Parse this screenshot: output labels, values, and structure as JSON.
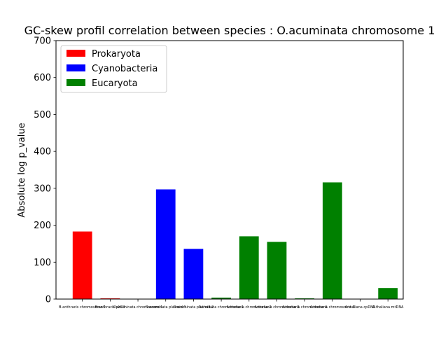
{
  "chart_data": {
    "type": "bar",
    "title": "GC-skew profil correlation between species : O.acuminata chromosome 1",
    "xlabel": "",
    "ylabel": "Absolute log p_value",
    "ylim": [
      0,
      700
    ],
    "yticks": [
      0,
      100,
      200,
      300,
      400,
      500,
      600,
      700
    ],
    "grid": false,
    "legend_position": "top-left",
    "categories": [
      "B.anthracis chromosome 1",
      "B.anthracis pXO1",
      "O.acuminata chromosome 1",
      "O.acuminata plasmid 1",
      "O.acuminata plasmid 2",
      "A.thaliana chromosome 1",
      "A.thaliana chromosome 2",
      "A.thaliana chromosome 3",
      "A.thaliana chromosome 4",
      "A.thaliana chromosome 5",
      "A.thaliana cpDNA",
      "A.thaliana mtDNA"
    ],
    "values": [
      183,
      2,
      0,
      297,
      136,
      4,
      170,
      155,
      2,
      316,
      0,
      30
    ],
    "groups": [
      "Prokaryota",
      "Prokaryota",
      "Cyanobacteria",
      "Cyanobacteria",
      "Cyanobacteria",
      "Eucaryota",
      "Eucaryota",
      "Eucaryota",
      "Eucaryota",
      "Eucaryota",
      "Eucaryota",
      "Eucaryota"
    ],
    "legend": [
      {
        "name": "Prokaryota",
        "color": "#ff0000"
      },
      {
        "name": "Cyanobacteria",
        "color": "#0000ff"
      },
      {
        "name": "Eucaryota",
        "color": "#008000"
      }
    ]
  }
}
